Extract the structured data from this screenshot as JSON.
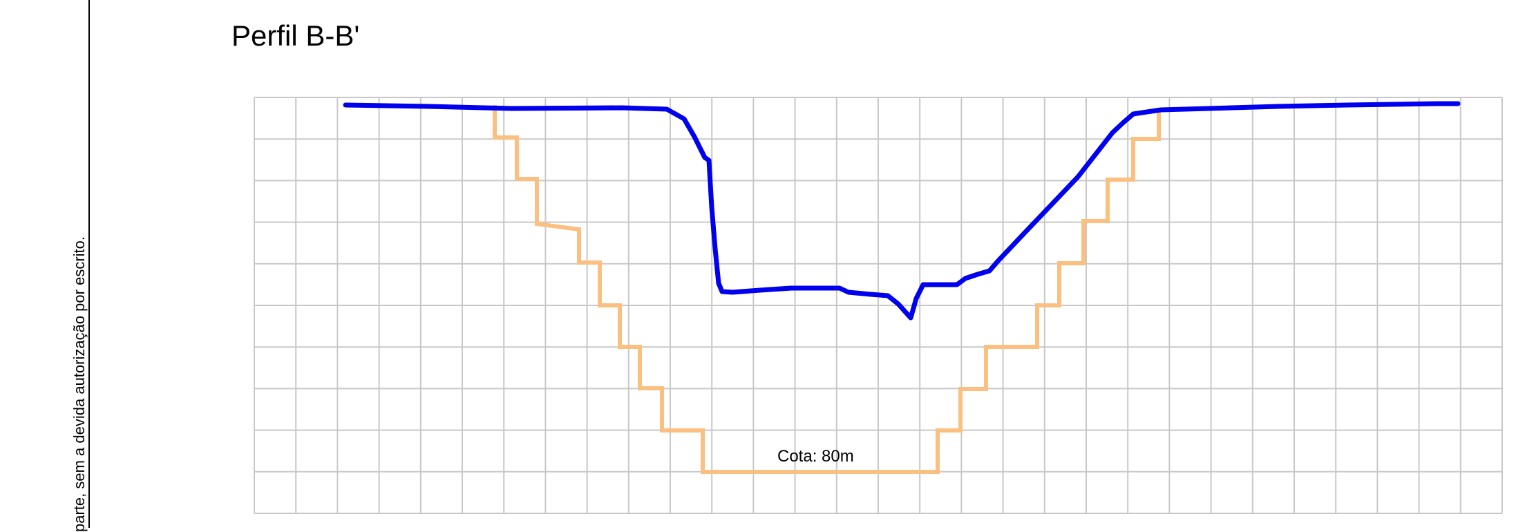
{
  "side_note": "parte, sem a devida autorização por escrito.",
  "title": "Perfil B-B'",
  "annotation": "Cota: 80m",
  "colors": {
    "terrain": "#0000ee",
    "excavation": "#fbbf80",
    "grid": "#c8c8c8"
  }
}
